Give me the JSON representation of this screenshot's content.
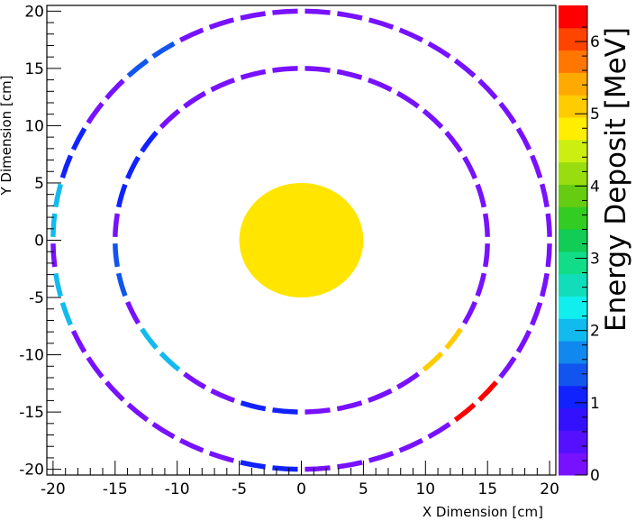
{
  "chart_data": {
    "type": "heatmap",
    "title": "",
    "xlabel": "X Dimension [cm]",
    "ylabel": "Y Dimension [cm]",
    "zlabel": "Energy Deposit [MeV]",
    "xlim": [
      -20.5,
      20.5
    ],
    "ylim": [
      -20.5,
      20.5
    ],
    "zlim": [
      0,
      6.5
    ],
    "x_ticks": [
      -20,
      -15,
      -10,
      -5,
      0,
      5,
      10,
      15,
      20
    ],
    "y_ticks": [
      -20,
      -15,
      -10,
      -5,
      0,
      5,
      10,
      15,
      20
    ],
    "z_ticks": [
      0,
      1,
      2,
      3,
      4,
      5,
      6
    ],
    "palette": [
      "#7711ff",
      "#5511ff",
      "#3311ff",
      "#1122ff",
      "#1155ee",
      "#1188ee",
      "#11bbee",
      "#11eeee",
      "#11ddbb",
      "#11dd88",
      "#11cc55",
      "#33cc22",
      "#66cc11",
      "#99dd11",
      "#ccee11",
      "#ffee00",
      "#ffcc00",
      "#ffaa00",
      "#ff7700",
      "#ff4400",
      "#ff0000"
    ],
    "central_disk": {
      "center": [
        0,
        0
      ],
      "radius": 5,
      "energy": 5.0,
      "color": "#ffe500"
    },
    "rings": [
      {
        "name": "inner",
        "radius": 15,
        "segments": 36,
        "base_energy": 0.3,
        "hits": [
          {
            "angle_deg": 150,
            "energy": 1.0
          },
          {
            "angle_deg": 160,
            "energy": 1.1
          },
          {
            "angle_deg": 190,
            "energy": 1.3
          },
          {
            "angle_deg": 220,
            "energy": 1.9
          },
          {
            "angle_deg": 260,
            "energy": 1.2
          },
          {
            "angle_deg": 320,
            "energy": 5.0
          }
        ]
      },
      {
        "name": "outer",
        "radius": 20,
        "segments": 48,
        "base_energy": 0.3,
        "hits": [
          {
            "angle_deg": 127.5,
            "energy": 1.5
          },
          {
            "angle_deg": 157.5,
            "energy": 1.0
          },
          {
            "angle_deg": 172.5,
            "energy": 2.0
          },
          {
            "angle_deg": 195,
            "energy": 1.9
          },
          {
            "angle_deg": 262.5,
            "energy": 1.0
          },
          {
            "angle_deg": 315,
            "energy": 6.4
          }
        ]
      }
    ]
  }
}
